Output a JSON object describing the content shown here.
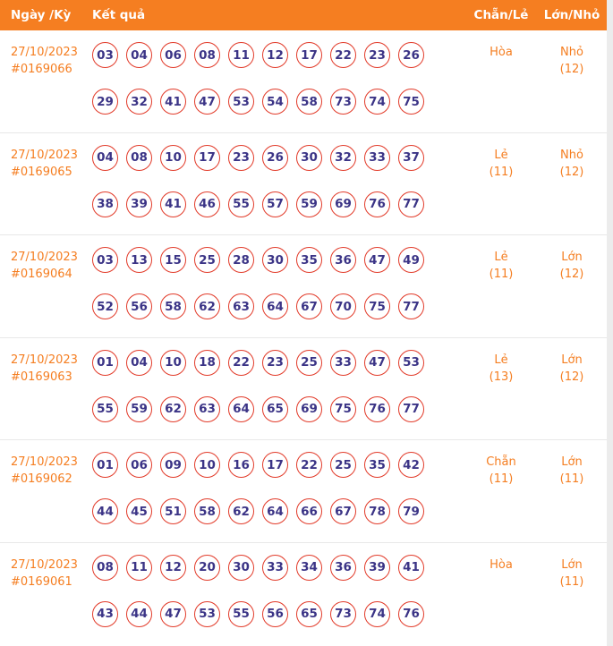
{
  "header": {
    "col_date": "Ngày /Kỳ",
    "col_result": "Kết quả",
    "col_evenodd": "Chẵn/Lẻ",
    "col_bigsmall": "Lớn/Nhỏ"
  },
  "rows": [
    {
      "date": "27/10/2023",
      "period": "#0169066",
      "numbers": [
        "03",
        "04",
        "06",
        "08",
        "11",
        "12",
        "17",
        "22",
        "23",
        "26",
        "29",
        "32",
        "41",
        "47",
        "53",
        "54",
        "58",
        "73",
        "74",
        "75"
      ],
      "evenodd": "Hòa",
      "evenodd_count": "",
      "bigsmall": "Nhỏ",
      "bigsmall_count": "(12)"
    },
    {
      "date": "27/10/2023",
      "period": "#0169065",
      "numbers": [
        "04",
        "08",
        "10",
        "17",
        "23",
        "26",
        "30",
        "32",
        "33",
        "37",
        "38",
        "39",
        "41",
        "46",
        "55",
        "57",
        "59",
        "69",
        "76",
        "77"
      ],
      "evenodd": "Lẻ",
      "evenodd_count": "(11)",
      "bigsmall": "Nhỏ",
      "bigsmall_count": "(12)"
    },
    {
      "date": "27/10/2023",
      "period": "#0169064",
      "numbers": [
        "03",
        "13",
        "15",
        "25",
        "28",
        "30",
        "35",
        "36",
        "47",
        "49",
        "52",
        "56",
        "58",
        "62",
        "63",
        "64",
        "67",
        "70",
        "75",
        "77"
      ],
      "evenodd": "Lẻ",
      "evenodd_count": "(11)",
      "bigsmall": "Lớn",
      "bigsmall_count": "(12)"
    },
    {
      "date": "27/10/2023",
      "period": "#0169063",
      "numbers": [
        "01",
        "04",
        "10",
        "18",
        "22",
        "23",
        "25",
        "33",
        "47",
        "53",
        "55",
        "59",
        "62",
        "63",
        "64",
        "65",
        "69",
        "75",
        "76",
        "77"
      ],
      "evenodd": "Lẻ",
      "evenodd_count": "(13)",
      "bigsmall": "Lớn",
      "bigsmall_count": "(12)"
    },
    {
      "date": "27/10/2023",
      "period": "#0169062",
      "numbers": [
        "01",
        "06",
        "09",
        "10",
        "16",
        "17",
        "22",
        "25",
        "35",
        "42",
        "44",
        "45",
        "51",
        "58",
        "62",
        "64",
        "66",
        "67",
        "78",
        "79"
      ],
      "evenodd": "Chẵn",
      "evenodd_count": "(11)",
      "bigsmall": "Lớn",
      "bigsmall_count": "(11)"
    },
    {
      "date": "27/10/2023",
      "period": "#0169061",
      "numbers": [
        "08",
        "11",
        "12",
        "20",
        "30",
        "33",
        "34",
        "36",
        "39",
        "41",
        "43",
        "44",
        "47",
        "53",
        "55",
        "56",
        "65",
        "73",
        "74",
        "76"
      ],
      "evenodd": "Hòa",
      "evenodd_count": "",
      "bigsmall": "Lớn",
      "bigsmall_count": "(11)"
    }
  ],
  "colors": {
    "header_bg": "#f57e21",
    "accent_orange": "#f57e21",
    "ball_border": "#e23b2a",
    "number_color": "#3b3486",
    "separator": "#e8e8e8",
    "edge_strip": "#ececec"
  }
}
